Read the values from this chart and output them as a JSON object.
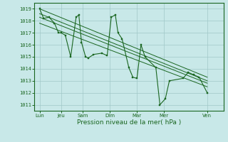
{
  "xlabel": "Pression niveau de la mer( hPa )",
  "bg_color": "#c8e8e8",
  "grid_color": "#a0c8c8",
  "line_color": "#1a6620",
  "ylim": [
    1010.5,
    1019.5
  ],
  "xlim": [
    0,
    7.0
  ],
  "yticks": [
    1011,
    1012,
    1013,
    1014,
    1015,
    1016,
    1017,
    1018,
    1019
  ],
  "xtick_labels": [
    "Lun",
    "Jeu",
    "Sam",
    "Dim",
    "Mar",
    "Mer",
    "Ven"
  ],
  "xtick_positions": [
    0.2,
    1.0,
    1.8,
    2.8,
    3.8,
    4.8,
    6.4
  ],
  "series_x": [
    0.2,
    0.35,
    0.55,
    0.75,
    0.9,
    1.0,
    1.15,
    1.35,
    1.55,
    1.65,
    1.75,
    1.9,
    2.0,
    2.2,
    2.5,
    2.7,
    2.85,
    3.0,
    3.1,
    3.25,
    3.5,
    3.65,
    3.8,
    3.95,
    4.1,
    4.5,
    4.65,
    4.85,
    5.0,
    5.5,
    5.7,
    5.9,
    6.1,
    6.4
  ],
  "series_y": [
    1019.0,
    1018.2,
    1018.3,
    1017.8,
    1017.0,
    1017.0,
    1016.8,
    1015.0,
    1018.3,
    1018.5,
    1016.2,
    1015.0,
    1014.9,
    1015.2,
    1015.3,
    1015.1,
    1018.3,
    1018.5,
    1017.0,
    1016.5,
    1014.1,
    1013.3,
    1013.2,
    1016.0,
    1015.0,
    1014.1,
    1011.0,
    1011.5,
    1013.0,
    1013.2,
    1013.7,
    1013.5,
    1013.3,
    1012.0
  ],
  "trend_lines": [
    {
      "x": [
        0.2,
        6.4
      ],
      "y": [
        1019.0,
        1013.3
      ]
    },
    {
      "x": [
        0.2,
        6.4
      ],
      "y": [
        1018.6,
        1013.0
      ]
    },
    {
      "x": [
        0.2,
        6.4
      ],
      "y": [
        1018.3,
        1012.8
      ]
    },
    {
      "x": [
        0.2,
        6.4
      ],
      "y": [
        1017.8,
        1012.5
      ]
    }
  ]
}
